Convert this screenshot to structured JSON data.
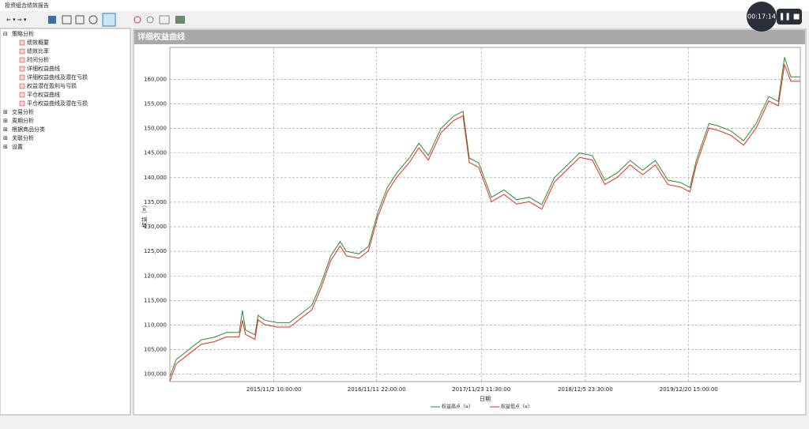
{
  "window": {
    "title": "投资组合绩效报告",
    "timer": "00:17:14"
  },
  "tree": {
    "items": [
      {
        "label": "策略分析",
        "children": [
          "绩效概要",
          "绩效比率",
          "时间分析",
          "详细权益曲线",
          "详细权益曲线及潜在亏损",
          "权益潜在盈利与亏损",
          "平仓权益曲线",
          "平仓权益曲线及潜在亏损"
        ]
      },
      {
        "label": "交易分析"
      },
      {
        "label": "周期分析"
      },
      {
        "label": "根据商品分类"
      },
      {
        "label": "关联分析"
      },
      {
        "label": "设置"
      }
    ]
  },
  "chart_data": {
    "type": "line",
    "title": "详细权益曲线",
    "x_label": "日期",
    "y_label": "权益（¤）",
    "x": [
      0,
      1,
      2,
      3,
      5,
      7,
      9,
      11,
      11.5,
      12,
      13.5,
      14,
      15,
      17,
      19,
      21,
      22.5,
      24,
      25.5,
      27,
      28,
      30,
      31.5,
      33,
      34.5,
      36,
      38,
      39.5,
      41,
      43,
      45,
      46.5,
      47.5,
      49,
      51,
      53,
      55,
      57,
      59,
      61,
      63,
      65,
      67,
      69,
      71,
      73,
      75,
      77,
      79,
      81,
      82.5,
      83.5,
      85.5,
      87,
      89,
      91,
      93,
      95,
      96.5,
      97.5,
      98.5,
      100
    ],
    "series": [
      {
        "name": "权益高点（¤）",
        "color": "#2e8b2e",
        "values": [
          99500,
          103000,
          104000,
          105000,
          107000,
          107500,
          108500,
          108500,
          113000,
          109000,
          108000,
          112000,
          111000,
          110500,
          110500,
          112500,
          114000,
          118500,
          124000,
          127000,
          125000,
          124500,
          126000,
          133000,
          138000,
          141000,
          144000,
          147000,
          144500,
          150000,
          152500,
          153500,
          144000,
          143000,
          136000,
          137500,
          135500,
          136000,
          134500,
          140000,
          142500,
          145000,
          144500,
          139500,
          141000,
          143500,
          141500,
          143500,
          139500,
          139000,
          138000,
          143500,
          151000,
          150500,
          149500,
          147500,
          151000,
          156500,
          155500,
          164500,
          160500,
          160500
        ]
      },
      {
        "name": "权益低点（¤）",
        "color": "#e8281e",
        "values": [
          98600,
          102100,
          103100,
          104100,
          106100,
          106600,
          107600,
          107600,
          111000,
          108100,
          107100,
          111100,
          110100,
          109600,
          109600,
          111600,
          113100,
          117600,
          123100,
          126100,
          124100,
          123600,
          125100,
          132100,
          137100,
          140100,
          143100,
          146100,
          143600,
          149100,
          151600,
          152600,
          143100,
          142100,
          135100,
          136600,
          134600,
          135100,
          133600,
          139100,
          141600,
          144100,
          143600,
          138600,
          140100,
          142600,
          140600,
          142600,
          138600,
          138100,
          137100,
          142600,
          150100,
          149600,
          148600,
          146600,
          150100,
          155600,
          154600,
          163000,
          159600,
          159600
        ]
      }
    ],
    "xlim": [
      0,
      100
    ],
    "xticks": [
      {
        "value": 16.5,
        "label": "2015/11/2 10:00:00"
      },
      {
        "value": 32.8,
        "label": "2016/11/11 22:00:00"
      },
      {
        "value": 49.4,
        "label": "2017/11/23 11:30:00"
      },
      {
        "value": 65.9,
        "label": "2018/12/5 23:30:00"
      },
      {
        "value": 82.3,
        "label": "2019/12/20 15:00:00"
      }
    ],
    "ylim": [
      98500,
      166500
    ],
    "yticks": [
      {
        "value": 100000,
        "label": "100,000"
      },
      {
        "value": 105000,
        "label": "105,000"
      },
      {
        "value": 110000,
        "label": "110,000"
      },
      {
        "value": 115000,
        "label": "115,000"
      },
      {
        "value": 120000,
        "label": "120,000"
      },
      {
        "value": 125000,
        "label": "125,000"
      },
      {
        "value": 130000,
        "label": "130,000"
      },
      {
        "value": 135000,
        "label": "135,000"
      },
      {
        "value": 140000,
        "label": "140,000"
      },
      {
        "value": 145000,
        "label": "145,000"
      },
      {
        "value": 150000,
        "label": "150,000"
      },
      {
        "value": 155000,
        "label": "155,000"
      },
      {
        "value": 160000,
        "label": "160,000"
      }
    ],
    "grid": true
  }
}
